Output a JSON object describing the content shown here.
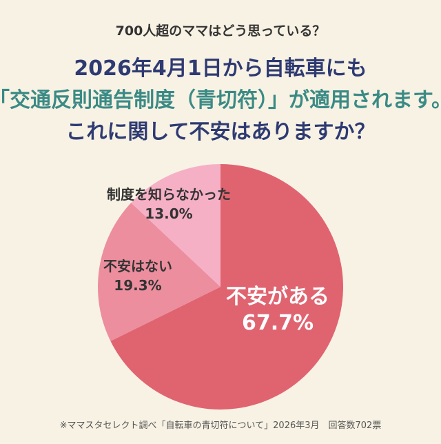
{
  "colors": {
    "background": "#f8f2e4",
    "title": "#2e3a72",
    "highlight": "#3a8a85",
    "slice_anxious": "#e06470",
    "slice_not_anxious": "#ec8e9e",
    "slice_unaware": "#f5b0c6"
  },
  "header": {
    "subtitle": "700人超のママはどう思っている？",
    "line1": "2026年4月1日から自転車にも",
    "line2_prefix": "「",
    "line2_highlight": "交通反則通告制度（青切符）",
    "line2_suffix": "」が適用されます。",
    "line3": "これに関して不安はありますか？"
  },
  "chart_data": {
    "type": "pie",
    "title": "これに関して不安はありますか？",
    "slices": [
      {
        "label": "不安がある",
        "value": 67.7,
        "value_label": "67.7%",
        "color": "#e06470"
      },
      {
        "label": "不安はない",
        "value": 19.3,
        "value_label": "19.3%",
        "color": "#ec8e9e"
      },
      {
        "label": "制度を知らなかった",
        "value": 13.0,
        "value_label": "13.0%",
        "color": "#f5b0c6"
      }
    ],
    "start": "12 o'clock",
    "direction": "clockwise"
  },
  "footnote": "※ママスタセレクト調べ「自転車の青切符について」2026年3月　回答数702票"
}
